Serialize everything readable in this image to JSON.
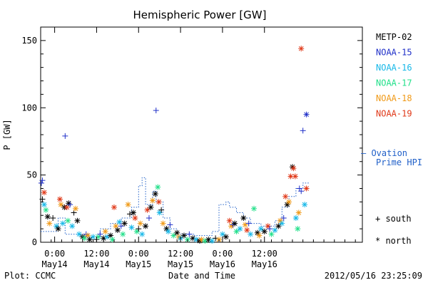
{
  "chart_data": {
    "type": "scatter",
    "title": "Hemispheric Power [GW]",
    "ylabel": "P [GW]",
    "xlabel": "Date and Time",
    "ylim": [
      0,
      160
    ],
    "xlim_hours": [
      -4,
      88
    ],
    "yticks": [
      0,
      50,
      100,
      150
    ],
    "xticks": [
      {
        "hour": 0,
        "time": "0:00",
        "date": "May14"
      },
      {
        "hour": 12,
        "time": "12:00",
        "date": "May14"
      },
      {
        "hour": 24,
        "time": "0:00",
        "date": "May15"
      },
      {
        "hour": 36,
        "time": "12:00",
        "date": "May15"
      },
      {
        "hour": 48,
        "time": "0:00",
        "date": "May16"
      },
      {
        "hour": 60,
        "time": "12:00",
        "date": "May16"
      }
    ],
    "legend_position": "right",
    "series": [
      {
        "name": "METP-02",
        "color": "#000000"
      },
      {
        "name": "NOAA-15",
        "color": "#1f2fc8"
      },
      {
        "name": "NOAA-16",
        "color": "#18b8e8"
      },
      {
        "name": "NOAA-17",
        "color": "#22e08a"
      },
      {
        "name": "NOAA-18",
        "color": "#f09a18"
      },
      {
        "name": "NOAA-19",
        "color": "#e03818"
      }
    ],
    "ovation_label": [
      "— Ovation",
      "Prime HPI"
    ],
    "ovation_color": "#1f5fc8",
    "marker_legend": {
      "south": "+ south",
      "north": "* north"
    },
    "points": [
      {
        "s": 1,
        "m": "+",
        "x": 3.0,
        "y": 79
      },
      {
        "s": 1,
        "m": "+",
        "x": 29.0,
        "y": 98
      },
      {
        "s": 1,
        "m": "+",
        "x": 71.0,
        "y": 83
      },
      {
        "s": 1,
        "m": "*",
        "x": 72.0,
        "y": 95
      },
      {
        "s": 5,
        "m": "*",
        "x": 70.5,
        "y": 144
      },
      {
        "s": 1,
        "m": "+",
        "x": -3.5,
        "y": 46
      },
      {
        "s": 1,
        "m": "+",
        "x": -3.8,
        "y": 44
      },
      {
        "s": 5,
        "m": "*",
        "x": -3.0,
        "y": 37
      },
      {
        "s": 0,
        "m": "+",
        "x": -3.5,
        "y": 32
      },
      {
        "s": 2,
        "m": "*",
        "x": -3.0,
        "y": 28
      },
      {
        "s": 0,
        "m": "*",
        "x": -2.0,
        "y": 19
      },
      {
        "s": 3,
        "m": "*",
        "x": -2.5,
        "y": 24
      },
      {
        "s": 4,
        "m": "*",
        "x": -1.5,
        "y": 14
      },
      {
        "s": 0,
        "m": "+",
        "x": -0.5,
        "y": 18
      },
      {
        "s": 2,
        "m": "*",
        "x": 0.5,
        "y": 12
      },
      {
        "s": 0,
        "m": "*",
        "x": 1.0,
        "y": 10
      },
      {
        "s": 5,
        "m": "*",
        "x": 1.5,
        "y": 32
      },
      {
        "s": 4,
        "m": "*",
        "x": 1.8,
        "y": 28
      },
      {
        "s": 2,
        "m": "*",
        "x": 2.3,
        "y": 14
      },
      {
        "s": 0,
        "m": "*",
        "x": 2.8,
        "y": 26
      },
      {
        "s": 5,
        "m": "*",
        "x": 3.5,
        "y": 26
      },
      {
        "s": 3,
        "m": "*",
        "x": 3.8,
        "y": 16
      },
      {
        "s": 0,
        "m": "*",
        "x": 4.0,
        "y": 29
      },
      {
        "s": 1,
        "m": "+",
        "x": 4.4,
        "y": 28
      },
      {
        "s": 2,
        "m": "*",
        "x": 5.0,
        "y": 12
      },
      {
        "s": 0,
        "m": "+",
        "x": 5.5,
        "y": 22
      },
      {
        "s": 4,
        "m": "*",
        "x": 6.0,
        "y": 25
      },
      {
        "s": 0,
        "m": "*",
        "x": 6.5,
        "y": 16
      },
      {
        "s": 2,
        "m": "*",
        "x": 7.0,
        "y": 6
      },
      {
        "s": 0,
        "m": "*",
        "x": 8.0,
        "y": 4
      },
      {
        "s": 3,
        "m": "*",
        "x": 8.5,
        "y": 3
      },
      {
        "s": 1,
        "m": "+",
        "x": 9.0,
        "y": 6
      },
      {
        "s": 4,
        "m": "*",
        "x": 9.5,
        "y": 5
      },
      {
        "s": 0,
        "m": "*",
        "x": 10.0,
        "y": 2
      },
      {
        "s": 2,
        "m": "*",
        "x": 11.0,
        "y": 4
      },
      {
        "s": 0,
        "m": "+",
        "x": 12.0,
        "y": 2
      },
      {
        "s": 3,
        "m": "*",
        "x": 12.5,
        "y": 4
      },
      {
        "s": 1,
        "m": "+",
        "x": 13.0,
        "y": 6
      },
      {
        "s": 0,
        "m": "*",
        "x": 14.0,
        "y": 3
      },
      {
        "s": 4,
        "m": "*",
        "x": 14.5,
        "y": 8
      },
      {
        "s": 2,
        "m": "*",
        "x": 15.0,
        "y": 4
      },
      {
        "s": 0,
        "m": "*",
        "x": 16.0,
        "y": 5
      },
      {
        "s": 3,
        "m": "*",
        "x": 16.5,
        "y": 2
      },
      {
        "s": 5,
        "m": "*",
        "x": 17.0,
        "y": 26
      },
      {
        "s": 4,
        "m": "*",
        "x": 17.5,
        "y": 12
      },
      {
        "s": 0,
        "m": "*",
        "x": 18.0,
        "y": 9
      },
      {
        "s": 2,
        "m": "*",
        "x": 18.5,
        "y": 15
      },
      {
        "s": 1,
        "m": "+",
        "x": 19.0,
        "y": 12
      },
      {
        "s": 3,
        "m": "*",
        "x": 19.5,
        "y": 6
      },
      {
        "s": 0,
        "m": "*",
        "x": 20.0,
        "y": 14
      },
      {
        "s": 4,
        "m": "*",
        "x": 21.0,
        "y": 28
      },
      {
        "s": 0,
        "m": "+",
        "x": 21.5,
        "y": 21
      },
      {
        "s": 2,
        "m": "*",
        "x": 22.0,
        "y": 11
      },
      {
        "s": 0,
        "m": "*",
        "x": 22.5,
        "y": 22
      },
      {
        "s": 5,
        "m": "*",
        "x": 23.0,
        "y": 18
      },
      {
        "s": 3,
        "m": "*",
        "x": 23.5,
        "y": 8
      },
      {
        "s": 0,
        "m": "+",
        "x": 24.0,
        "y": 10
      },
      {
        "s": 4,
        "m": "*",
        "x": 24.5,
        "y": 14
      },
      {
        "s": 2,
        "m": "*",
        "x": 25.0,
        "y": 6
      },
      {
        "s": 0,
        "m": "*",
        "x": 26.0,
        "y": 12
      },
      {
        "s": 5,
        "m": "*",
        "x": 26.5,
        "y": 24
      },
      {
        "s": 1,
        "m": "+",
        "x": 27.0,
        "y": 18
      },
      {
        "s": 0,
        "m": "*",
        "x": 27.5,
        "y": 26
      },
      {
        "s": 4,
        "m": "*",
        "x": 28.0,
        "y": 31
      },
      {
        "s": 0,
        "m": "*",
        "x": 28.8,
        "y": 36
      },
      {
        "s": 3,
        "m": "*",
        "x": 29.5,
        "y": 41
      },
      {
        "s": 5,
        "m": "*",
        "x": 29.8,
        "y": 30
      },
      {
        "s": 2,
        "m": "*",
        "x": 30.0,
        "y": 22
      },
      {
        "s": 0,
        "m": "+",
        "x": 30.5,
        "y": 24
      },
      {
        "s": 4,
        "m": "*",
        "x": 31.0,
        "y": 14
      },
      {
        "s": 0,
        "m": "*",
        "x": 32.0,
        "y": 10
      },
      {
        "s": 2,
        "m": "*",
        "x": 32.5,
        "y": 8
      },
      {
        "s": 1,
        "m": "+",
        "x": 33.0,
        "y": 13
      },
      {
        "s": 3,
        "m": "*",
        "x": 34.0,
        "y": 5
      },
      {
        "s": 0,
        "m": "*",
        "x": 35.0,
        "y": 7
      },
      {
        "s": 4,
        "m": "*",
        "x": 35.5,
        "y": 4
      },
      {
        "s": 2,
        "m": "*",
        "x": 36.0,
        "y": 3
      },
      {
        "s": 0,
        "m": "*",
        "x": 37.0,
        "y": 5
      },
      {
        "s": 3,
        "m": "*",
        "x": 38.0,
        "y": 2
      },
      {
        "s": 1,
        "m": "+",
        "x": 38.5,
        "y": 6
      },
      {
        "s": 0,
        "m": "*",
        "x": 39.5,
        "y": 3
      },
      {
        "s": 2,
        "m": "*",
        "x": 40.5,
        "y": 2
      },
      {
        "s": 0,
        "m": "*",
        "x": 41.5,
        "y": 1
      },
      {
        "s": 4,
        "m": "*",
        "x": 42.0,
        "y": 2
      },
      {
        "s": 3,
        "m": "*",
        "x": 43.0,
        "y": 1
      },
      {
        "s": 0,
        "m": "*",
        "x": 44.0,
        "y": 2
      },
      {
        "s": 2,
        "m": "*",
        "x": 45.0,
        "y": 1
      },
      {
        "s": 0,
        "m": "+",
        "x": 46.0,
        "y": 3
      },
      {
        "s": 4,
        "m": "*",
        "x": 47.0,
        "y": 2
      },
      {
        "s": 2,
        "m": "*",
        "x": 48.0,
        "y": 6
      },
      {
        "s": 0,
        "m": "*",
        "x": 49.0,
        "y": 4
      },
      {
        "s": 5,
        "m": "*",
        "x": 50.0,
        "y": 16
      },
      {
        "s": 4,
        "m": "*",
        "x": 50.5,
        "y": 12
      },
      {
        "s": 1,
        "m": "+",
        "x": 51.0,
        "y": 13
      },
      {
        "s": 0,
        "m": "*",
        "x": 51.5,
        "y": 14
      },
      {
        "s": 3,
        "m": "*",
        "x": 52.0,
        "y": 8
      },
      {
        "s": 2,
        "m": "*",
        "x": 53.0,
        "y": 10
      },
      {
        "s": 0,
        "m": "*",
        "x": 54.0,
        "y": 18
      },
      {
        "s": 4,
        "m": "*",
        "x": 54.5,
        "y": 13
      },
      {
        "s": 5,
        "m": "*",
        "x": 55.0,
        "y": 9
      },
      {
        "s": 1,
        "m": "+",
        "x": 55.5,
        "y": 14
      },
      {
        "s": 2,
        "m": "*",
        "x": 56.0,
        "y": 6
      },
      {
        "s": 3,
        "m": "*",
        "x": 57.0,
        "y": 25
      },
      {
        "s": 0,
        "m": "*",
        "x": 58.0,
        "y": 7
      },
      {
        "s": 4,
        "m": "*",
        "x": 58.5,
        "y": 5
      },
      {
        "s": 2,
        "m": "*",
        "x": 59.0,
        "y": 10
      },
      {
        "s": 0,
        "m": "*",
        "x": 60.0,
        "y": 8
      },
      {
        "s": 5,
        "m": "*",
        "x": 61.0,
        "y": 12
      },
      {
        "s": 1,
        "m": "+",
        "x": 61.5,
        "y": 10
      },
      {
        "s": 3,
        "m": "*",
        "x": 62.0,
        "y": 6
      },
      {
        "s": 2,
        "m": "*",
        "x": 63.0,
        "y": 9
      },
      {
        "s": 0,
        "m": "*",
        "x": 64.0,
        "y": 12
      },
      {
        "s": 4,
        "m": "*",
        "x": 64.5,
        "y": 16
      },
      {
        "s": 2,
        "m": "*",
        "x": 65.0,
        "y": 14
      },
      {
        "s": 1,
        "m": "+",
        "x": 65.5,
        "y": 18
      },
      {
        "s": 5,
        "m": "*",
        "x": 66.0,
        "y": 34
      },
      {
        "s": 0,
        "m": "*",
        "x": 66.5,
        "y": 28
      },
      {
        "s": 4,
        "m": "*",
        "x": 67.0,
        "y": 30
      },
      {
        "s": 5,
        "m": "*",
        "x": 67.5,
        "y": 49
      },
      {
        "s": 0,
        "m": "*",
        "x": 68.0,
        "y": 56
      },
      {
        "s": 5,
        "m": "*",
        "x": 68.3,
        "y": 55
      },
      {
        "s": 5,
        "m": "*",
        "x": 68.8,
        "y": 49
      },
      {
        "s": 2,
        "m": "*",
        "x": 69.0,
        "y": 18
      },
      {
        "s": 3,
        "m": "*",
        "x": 69.5,
        "y": 10
      },
      {
        "s": 4,
        "m": "*",
        "x": 69.8,
        "y": 22
      },
      {
        "s": 1,
        "m": "+",
        "x": 70.0,
        "y": 40
      },
      {
        "s": 1,
        "m": "+",
        "x": 70.5,
        "y": 38
      },
      {
        "s": 2,
        "m": "*",
        "x": 71.5,
        "y": 28
      },
      {
        "s": 5,
        "m": "*",
        "x": 72.0,
        "y": 40
      }
    ],
    "ovation": [
      [
        -4,
        8
      ],
      [
        1,
        8
      ],
      [
        1,
        18
      ],
      [
        3,
        18
      ],
      [
        3,
        6
      ],
      [
        8,
        6
      ],
      [
        8,
        4
      ],
      [
        13,
        4
      ],
      [
        13,
        10
      ],
      [
        16,
        10
      ],
      [
        16,
        14
      ],
      [
        19,
        14
      ],
      [
        19,
        18
      ],
      [
        22,
        18
      ],
      [
        22,
        26
      ],
      [
        24,
        26
      ],
      [
        24,
        42
      ],
      [
        25,
        42
      ],
      [
        25,
        48
      ],
      [
        26,
        48
      ],
      [
        26,
        28
      ],
      [
        28,
        28
      ],
      [
        28,
        38
      ],
      [
        29,
        38
      ],
      [
        29,
        30
      ],
      [
        31,
        30
      ],
      [
        31,
        18
      ],
      [
        33,
        18
      ],
      [
        33,
        10
      ],
      [
        35,
        10
      ],
      [
        35,
        6
      ],
      [
        40,
        6
      ],
      [
        40,
        5
      ],
      [
        45,
        5
      ],
      [
        45,
        8
      ],
      [
        47,
        8
      ],
      [
        47,
        28
      ],
      [
        49,
        28
      ],
      [
        49,
        30
      ],
      [
        50,
        30
      ],
      [
        50,
        26
      ],
      [
        52,
        26
      ],
      [
        52,
        22
      ],
      [
        54,
        22
      ],
      [
        54,
        18
      ],
      [
        56,
        18
      ],
      [
        56,
        14
      ],
      [
        59,
        14
      ],
      [
        59,
        12
      ],
      [
        63,
        12
      ],
      [
        63,
        16
      ],
      [
        65,
        16
      ],
      [
        65,
        26
      ],
      [
        67,
        26
      ],
      [
        67,
        34
      ],
      [
        69,
        34
      ],
      [
        69,
        40
      ],
      [
        71,
        40
      ],
      [
        71,
        44
      ],
      [
        73,
        44
      ]
    ]
  },
  "footer": {
    "plot_label": "Plot: CCMC",
    "timestamp": "2012/05/16 23:25:09"
  }
}
